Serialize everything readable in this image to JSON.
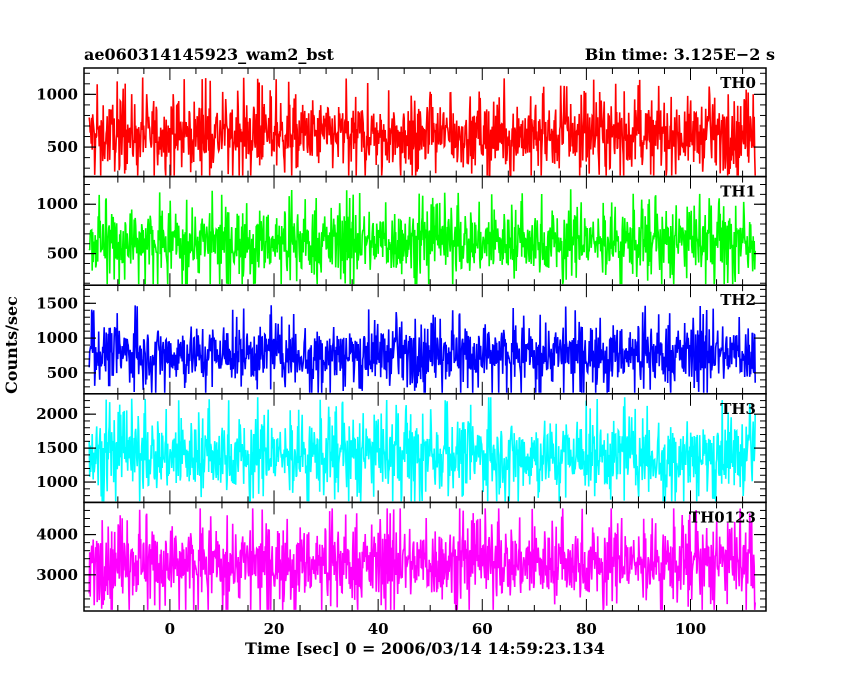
{
  "header": {
    "left_title": "ae060314145923_wam2_bst",
    "right_title": "Bin time: 3.125E−2 s"
  },
  "chart_data": {
    "type": "line",
    "xlabel": "Time [sec] 0 = 2006/03/14 14:59:23.134",
    "ylabel": "Counts/sec",
    "xlim": [
      -16.5,
      114.5
    ],
    "x_ticks": [
      0,
      20,
      40,
      60,
      80,
      100
    ],
    "x_range_data": [
      -15.5,
      112.5
    ],
    "bin_time_s": 0.03125,
    "panels": [
      {
        "name": "TH0",
        "color": "#ff0000",
        "ylim": [
          220,
          1250
        ],
        "y_ticks": [
          500,
          1000
        ],
        "typical_low": 280,
        "typical_high": 980,
        "mean": 620,
        "spike_max": 1200
      },
      {
        "name": "TH1",
        "color": "#00ff00",
        "ylim": [
          180,
          1280
        ],
        "y_ticks": [
          500,
          1000
        ],
        "typical_low": 260,
        "typical_high": 980,
        "mean": 620,
        "spike_max": 1180
      },
      {
        "name": "TH2",
        "color": "#0000ff",
        "ylim": [
          200,
          1760
        ],
        "y_ticks": [
          500,
          1000,
          1500
        ],
        "typical_low": 330,
        "typical_high": 1250,
        "mean": 780,
        "spike_max": 1620
      },
      {
        "name": "TH3",
        "color": "#00ffff",
        "ylim": [
          700,
          2300
        ],
        "y_ticks": [
          1000,
          1500,
          2000
        ],
        "typical_low": 800,
        "typical_high": 2000,
        "mean": 1400,
        "spike_max": 2250
      },
      {
        "name": "TH0123",
        "color": "#ff00ff",
        "ylim": [
          2100,
          4800
        ],
        "y_ticks": [
          3000,
          4000
        ],
        "typical_low": 2300,
        "typical_high": 4300,
        "mean": 3300,
        "spike_max": 4650
      }
    ]
  }
}
